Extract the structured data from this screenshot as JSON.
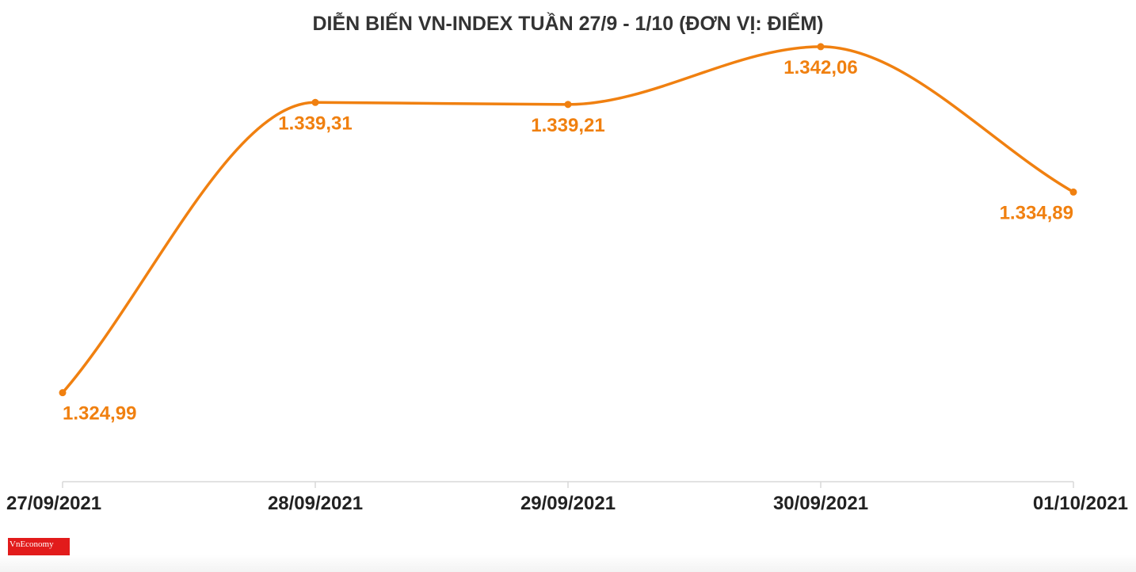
{
  "colors": {
    "line": "#f08010",
    "value_label": "#f08010",
    "axis": "#d9d9d9",
    "text": "#222222",
    "logo_bg": "#e21b1b"
  },
  "logo": {
    "text": "VnEconomy"
  },
  "chart_data": {
    "type": "line",
    "title": "DIỄN BIẾN VN-INDEX TUẦN 27/9 - 1/10 (ĐƠN VỊ: ĐIỂM)",
    "xlabel": "",
    "ylabel": "",
    "grid": false,
    "smooth": true,
    "categories": [
      "27/09/2021",
      "28/09/2021",
      "29/09/2021",
      "30/09/2021",
      "01/10/2021"
    ],
    "values": [
      1324.99,
      1339.31,
      1339.21,
      1342.06,
      1334.89
    ],
    "value_labels": [
      "1.324,99",
      "1.339,31",
      "1.339,21",
      "1.342,06",
      "1.334,89"
    ],
    "ylim": [
      1320.6,
      1342.8
    ]
  }
}
